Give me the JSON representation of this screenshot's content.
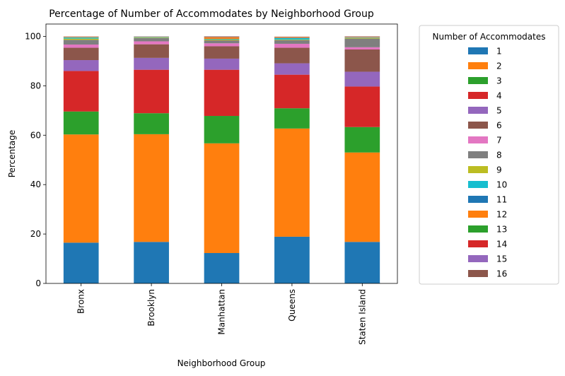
{
  "chart_data": {
    "type": "bar",
    "stacked": true,
    "title": "Percentage of Number of Accommodates by Neighborhood Group",
    "xlabel": "Neighborhood Group",
    "ylabel": "Percentage",
    "ylim": [
      0,
      105
    ],
    "yticks": [
      "0",
      "20",
      "40",
      "60",
      "80",
      "100"
    ],
    "grid": false,
    "legend_title": "Number of Accommodates",
    "legend_position": "outside-right",
    "categories": [
      "Bronx",
      "Brooklyn",
      "Manhattan",
      "Queens",
      "Staten Island"
    ],
    "series": [
      {
        "name": "1",
        "color": "#1f77b4",
        "values": [
          16.5,
          16.8,
          12.3,
          18.9,
          16.8
        ]
      },
      {
        "name": "2",
        "color": "#ff7f0e",
        "values": [
          43.8,
          43.6,
          44.4,
          43.8,
          36.2
        ]
      },
      {
        "name": "3",
        "color": "#2ca02c",
        "values": [
          9.3,
          8.5,
          11.1,
          8.2,
          10.3
        ]
      },
      {
        "name": "4",
        "color": "#d62728",
        "values": [
          16.4,
          17.6,
          18.7,
          13.6,
          16.4
        ]
      },
      {
        "name": "5",
        "color": "#9467bd",
        "values": [
          4.4,
          4.8,
          4.5,
          4.6,
          6.0
        ]
      },
      {
        "name": "6",
        "color": "#8c564b",
        "values": [
          5.0,
          5.5,
          5.0,
          6.3,
          9.0
        ]
      },
      {
        "name": "7",
        "color": "#e377c2",
        "values": [
          1.3,
          1.2,
          1.2,
          1.6,
          0.9
        ]
      },
      {
        "name": "8",
        "color": "#7f7f7f",
        "values": [
          1.9,
          1.3,
          1.2,
          1.5,
          3.5
        ]
      },
      {
        "name": "9",
        "color": "#bcbd22",
        "values": [
          0.5,
          0.2,
          0.3,
          0.2,
          0.3
        ]
      },
      {
        "name": "10",
        "color": "#17becf",
        "values": [
          0.4,
          0.2,
          0.2,
          0.6,
          0.1
        ]
      },
      {
        "name": "11",
        "color": "#1f77b4",
        "values": [
          0.1,
          0.05,
          0.1,
          0.1,
          0.1
        ]
      },
      {
        "name": "12",
        "color": "#ff7f0e",
        "values": [
          0.2,
          0.1,
          0.6,
          0.3,
          0.1
        ]
      },
      {
        "name": "13",
        "color": "#2ca02c",
        "values": [
          0.05,
          0.03,
          0.05,
          0.05,
          0.05
        ]
      },
      {
        "name": "14",
        "color": "#d62728",
        "values": [
          0.05,
          0.03,
          0.05,
          0.05,
          0.05
        ]
      },
      {
        "name": "15",
        "color": "#9467bd",
        "values": [
          0.05,
          0.03,
          0.05,
          0.05,
          0.05
        ]
      },
      {
        "name": "16",
        "color": "#8c564b",
        "values": [
          0.05,
          0.06,
          0.25,
          0.05,
          0.15
        ]
      }
    ]
  }
}
